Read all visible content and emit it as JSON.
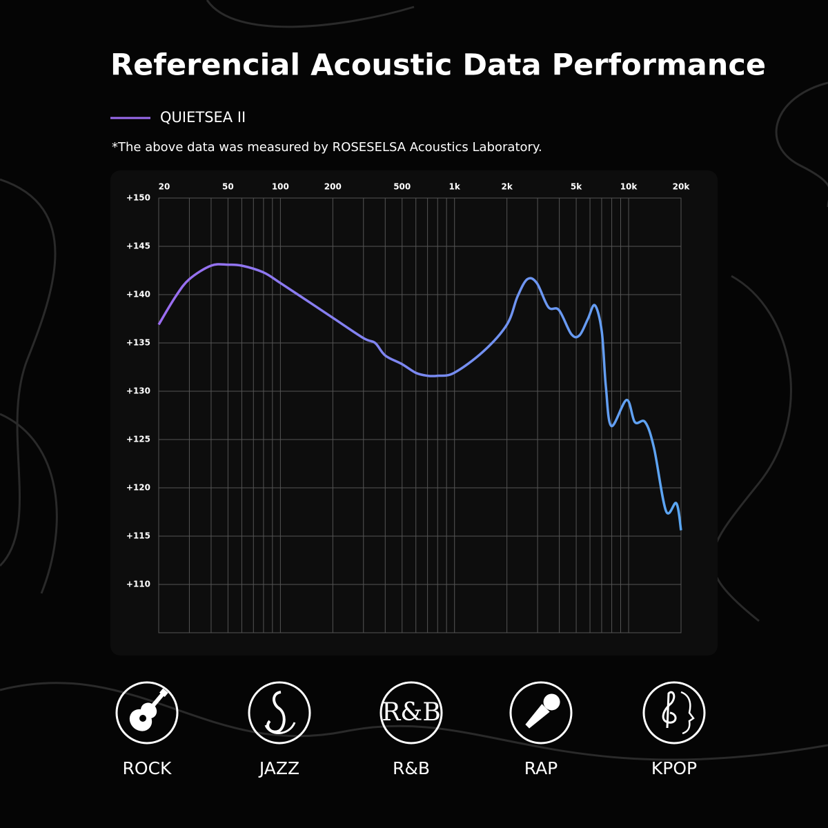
{
  "chart_data": {
    "type": "line",
    "title": "Referencial Acoustic Data Performance",
    "footnote": "*The above data was measured by ROSESELSA Acoustics Laboratory.",
    "x": [
      20,
      25,
      30,
      40,
      50,
      60,
      80,
      100,
      150,
      200,
      300,
      350,
      400,
      500,
      600,
      700,
      800,
      994,
      1460,
      2000,
      2300,
      2620,
      2970,
      3460,
      3980,
      4690,
      5230,
      5840,
      6400,
      7010,
      7400,
      7960,
      9740,
      10860,
      12450,
      14000,
      16400,
      18800,
      20000
    ],
    "series": [
      {
        "name": "QUIETSEA II",
        "color": "#9b6cf0",
        "values": [
          136.9,
          139.8,
          141.6,
          143.0,
          143.1,
          143.0,
          142.3,
          141.2,
          139.1,
          137.6,
          135.5,
          135.0,
          133.7,
          132.8,
          131.9,
          131.6,
          131.6,
          131.9,
          134.1,
          136.9,
          139.8,
          141.6,
          141.2,
          138.7,
          138.4,
          135.9,
          135.8,
          137.5,
          138.9,
          136.2,
          130.5,
          126.4,
          129.1,
          126.8,
          126.8,
          124.1,
          117.6,
          118.4,
          115.6
        ]
      }
    ],
    "xlim": [
      20,
      20000
    ],
    "xlog": true,
    "xticks": [
      20,
      50,
      100,
      200,
      500,
      {
        "value": 1000,
        "label": "1k"
      },
      {
        "value": 2000,
        "label": "2k"
      },
      {
        "value": 5000,
        "label": "5k"
      },
      {
        "value": 10000,
        "label": "10k"
      },
      {
        "value": 20000,
        "label": "20k"
      }
    ],
    "xminor": [
      30,
      40,
      60,
      70,
      80,
      90,
      300,
      400,
      600,
      700,
      800,
      900,
      3000,
      4000,
      6000,
      7000,
      8000,
      9000
    ],
    "ylim": [
      105,
      150
    ],
    "yticks": [
      {
        "value": 110,
        "label": "+110"
      },
      {
        "value": 115,
        "label": "+115"
      },
      {
        "value": 120,
        "label": "+120"
      },
      {
        "value": 125,
        "label": "+125"
      },
      {
        "value": 130,
        "label": "+130"
      },
      {
        "value": 135,
        "label": "+135"
      },
      {
        "value": 140,
        "label": "+140"
      },
      {
        "value": 145,
        "label": "+145"
      },
      {
        "value": 150,
        "label": "+150"
      }
    ],
    "grid": true
  },
  "genres": [
    "ROCK",
    "JAZZ",
    "R&B",
    "RAP",
    "KPOP"
  ]
}
